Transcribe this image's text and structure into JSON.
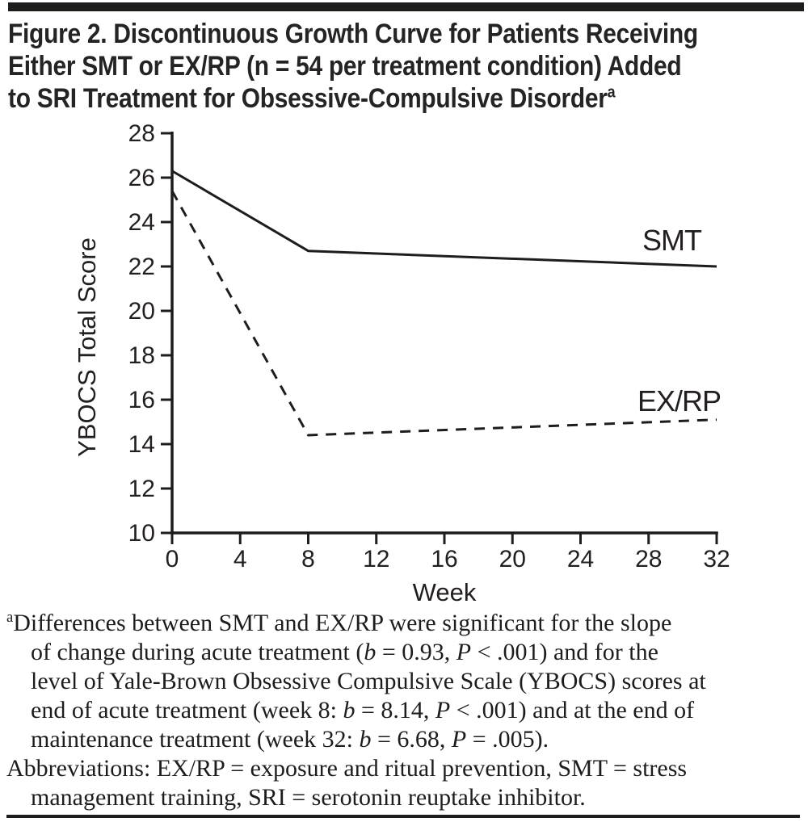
{
  "figure": {
    "title_lines": [
      "Figure 2. Discontinuous Growth Curve for Patients Receiving",
      "Either SMT or EX/RP (n = 54 per treatment condition) Added",
      "to SRI Treatment for Obsessive-Compulsive Disorder"
    ],
    "title_superscript": "a"
  },
  "chart_data": {
    "type": "line",
    "title": "",
    "xlabel": "Week",
    "ylabel": "YBOCS Total Score",
    "xlim": [
      0,
      32
    ],
    "ylim": [
      10,
      28
    ],
    "x_ticks": [
      0,
      4,
      8,
      12,
      16,
      20,
      24,
      28,
      32
    ],
    "y_ticks": [
      28,
      26,
      24,
      22,
      20,
      18,
      16,
      14,
      12,
      10
    ],
    "grid": false,
    "legend_position": "inline-labels-right",
    "series": [
      {
        "name": "SMT",
        "line_style": "solid",
        "color": "#1d1d1b",
        "x": [
          0,
          8,
          32
        ],
        "y": [
          26.3,
          22.7,
          22.0
        ]
      },
      {
        "name": "EX/RP",
        "line_style": "dashed",
        "color": "#1d1d1b",
        "x": [
          0,
          8,
          32
        ],
        "y": [
          25.4,
          14.4,
          15.1
        ]
      }
    ]
  },
  "footnote": {
    "para1": [
      [
        {
          "t": "a",
          "sup": true
        },
        {
          "t": "Differences between SMT and EX/RP were significant for the slope"
        }
      ],
      [
        {
          "t": "of change during acute treatment ("
        },
        {
          "t": "b",
          "i": true
        },
        {
          "t": " = 0.93, "
        },
        {
          "t": "P",
          "i": true
        },
        {
          "t": " < .001) and for the"
        }
      ],
      [
        {
          "t": "level of Yale-Brown Obsessive Compulsive Scale (YBOCS) scores at"
        }
      ],
      [
        {
          "t": "end of acute treatment (week 8: "
        },
        {
          "t": "b",
          "i": true
        },
        {
          "t": " = 8.14, "
        },
        {
          "t": "P",
          "i": true
        },
        {
          "t": " < .001) and at the end of"
        }
      ],
      [
        {
          "t": "maintenance treatment (week 32: "
        },
        {
          "t": "b",
          "i": true
        },
        {
          "t": " = 6.68, "
        },
        {
          "t": "P",
          "i": true
        },
        {
          "t": " = .005)."
        }
      ]
    ],
    "para2": [
      [
        {
          "t": "Abbreviations: EX/RP = exposure and ritual prevention, SMT = stress"
        }
      ],
      [
        {
          "t": "management training, SRI = serotonin reuptake inhibitor."
        }
      ]
    ]
  },
  "colors": {
    "ink": "#231f20",
    "line": "#1d1d1b",
    "background": "#ffffff"
  }
}
